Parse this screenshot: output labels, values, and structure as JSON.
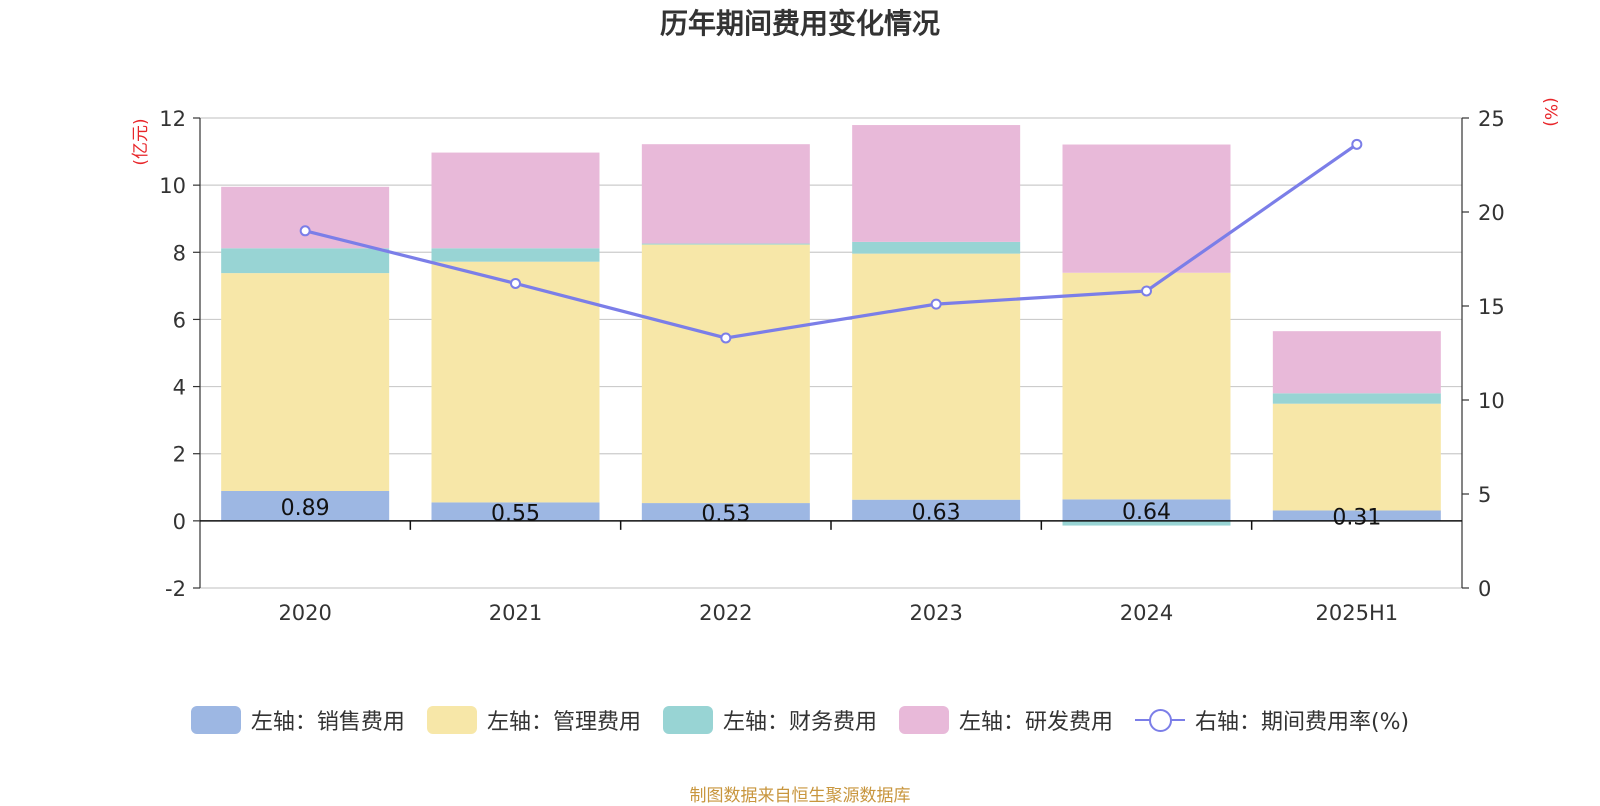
{
  "chart_data": {
    "type": "bar",
    "title": "历年期间费用变化情况",
    "categories": [
      "2020",
      "2021",
      "2022",
      "2023",
      "2024",
      "2025H1"
    ],
    "left_axis": {
      "unit": "(亿元)",
      "ylim": [
        -2,
        12
      ],
      "ticks": [
        "-2",
        "0",
        "2",
        "4",
        "6",
        "8",
        "10",
        "12"
      ]
    },
    "right_axis": {
      "unit": "(%)",
      "ylim": [
        0,
        25
      ],
      "ticks": [
        "0",
        "5",
        "10",
        "15",
        "20",
        "25"
      ]
    },
    "series": [
      {
        "name": "左轴：销售费用",
        "type": "bar",
        "axis": "left",
        "color": "#9db7e3",
        "values": [
          0.89,
          0.55,
          0.53,
          0.63,
          0.64,
          0.31
        ],
        "labels": [
          "0.89",
          "0.55",
          "0.53",
          "0.63",
          "0.64",
          "0.31"
        ]
      },
      {
        "name": "左轴：管理费用",
        "type": "bar",
        "axis": "left",
        "color": "#f7e7a8",
        "values": [
          6.49,
          7.17,
          7.7,
          7.33,
          6.75,
          3.18
        ]
      },
      {
        "name": "左轴：财务费用",
        "type": "bar",
        "axis": "left",
        "color": "#98d4d4",
        "values": [
          0.74,
          0.4,
          0.03,
          0.35,
          -0.14,
          0.31
        ]
      },
      {
        "name": "左轴：研发费用",
        "type": "bar",
        "axis": "left",
        "color": "#e8b9d9",
        "values": [
          1.83,
          2.85,
          2.96,
          3.48,
          3.82,
          1.85
        ]
      },
      {
        "name": "右轴：期间费用率(%)",
        "type": "line",
        "axis": "right",
        "color": "#7b7ee8",
        "values": [
          19.0,
          16.2,
          13.3,
          15.1,
          15.8,
          23.6
        ]
      }
    ],
    "grid": true,
    "legend_position": "bottom"
  },
  "footer": {
    "source": "制图数据来自恒生聚源数据库"
  }
}
